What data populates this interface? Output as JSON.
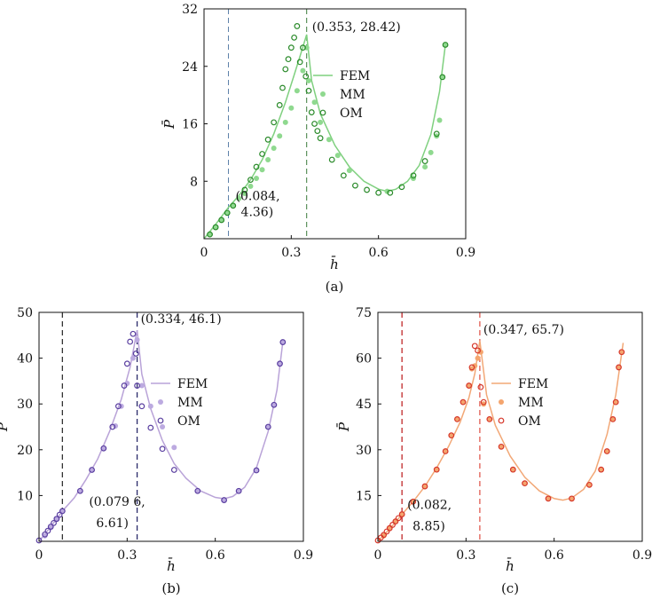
{
  "figure": {
    "panels": [
      "(a)",
      "(b)",
      "(c)"
    ]
  },
  "chart_data": [
    {
      "type": "line",
      "panel": "(a)",
      "caption": "(a)",
      "xlabel": "h̄",
      "ylabel": "P̄",
      "xlim": [
        0,
        0.9
      ],
      "ylim": [
        0,
        32
      ],
      "xticks": [
        0,
        0.3,
        0.6,
        0.9
      ],
      "xtick_labels": [
        "0",
        "0.3",
        "0.6",
        "0.9"
      ],
      "yticks": [
        8,
        16,
        24,
        32
      ],
      "ytick_labels": [
        "8",
        "16",
        "24",
        "32"
      ],
      "colors": {
        "fem": "#7fd07f",
        "mm": "#8fd98f",
        "om": "#2a8a2a",
        "vline1": "#5a7fa8",
        "vline2": "#3a7a3a"
      },
      "legend": {
        "position": "center-right",
        "entries": [
          "FEM",
          "MM",
          "OM"
        ]
      },
      "vlines": [
        0.084,
        0.353
      ],
      "annotations": [
        {
          "label": "(0.353, 28.42)",
          "x": 0.353,
          "y": 28.42
        },
        {
          "label": "(0.084,",
          "x": 0.084,
          "y": 4.36
        },
        {
          "label": "4.36)",
          "x": 0.084,
          "y": 4.36
        }
      ],
      "series": [
        {
          "name": "FEM",
          "x": [
            0,
            0.04,
            0.084,
            0.12,
            0.16,
            0.2,
            0.24,
            0.28,
            0.31,
            0.33,
            0.353,
            0.37,
            0.4,
            0.45,
            0.5,
            0.55,
            0.6,
            0.63,
            0.66,
            0.7,
            0.74,
            0.78,
            0.81,
            0.83
          ],
          "y": [
            0,
            2.0,
            4.36,
            6.0,
            8.2,
            11.0,
            14.6,
            19.0,
            22.8,
            25.4,
            28.42,
            22.0,
            17.4,
            13.0,
            10.0,
            8.0,
            6.9,
            6.6,
            6.9,
            8.0,
            10.2,
            14.5,
            20.5,
            27.0
          ]
        },
        {
          "name": "MM",
          "x": [
            0.02,
            0.04,
            0.06,
            0.08,
            0.1,
            0.12,
            0.14,
            0.16,
            0.18,
            0.2,
            0.22,
            0.24,
            0.26,
            0.28,
            0.3,
            0.32,
            0.34,
            0.353,
            0.36,
            0.38,
            0.4,
            0.43,
            0.46,
            0.5,
            0.63,
            0.72,
            0.76,
            0.78,
            0.8,
            0.81,
            0.82,
            0.83
          ],
          "y": [
            0.6,
            1.6,
            2.6,
            3.6,
            4.6,
            5.6,
            6.3,
            7.3,
            8.4,
            9.6,
            11.0,
            12.6,
            14.3,
            16.2,
            18.2,
            20.6,
            23.4,
            26.6,
            22.0,
            19.0,
            16.2,
            13.8,
            11.6,
            9.5,
            6.6,
            8.4,
            10.0,
            12.0,
            14.3,
            16.5,
            22.5,
            27.0
          ]
        },
        {
          "name": "OM",
          "x": [
            0.02,
            0.04,
            0.06,
            0.08,
            0.1,
            0.14,
            0.16,
            0.18,
            0.2,
            0.22,
            0.24,
            0.26,
            0.27,
            0.28,
            0.29,
            0.3,
            0.31,
            0.32,
            0.33,
            0.34,
            0.35,
            0.36,
            0.37,
            0.38,
            0.39,
            0.4,
            0.44,
            0.48,
            0.52,
            0.56,
            0.6,
            0.64,
            0.68,
            0.72,
            0.76,
            0.8,
            0.82,
            0.83
          ],
          "y": [
            0.6,
            1.6,
            2.6,
            3.6,
            4.6,
            6.8,
            8.2,
            10.0,
            11.8,
            13.8,
            16.2,
            18.6,
            21.0,
            23.6,
            25.0,
            26.6,
            28.0,
            29.6,
            24.6,
            26.6,
            22.6,
            20.6,
            17.6,
            16.0,
            15.0,
            14.0,
            11.0,
            8.8,
            7.4,
            6.8,
            6.4,
            6.4,
            7.2,
            8.8,
            10.8,
            14.6,
            22.5,
            27.0
          ]
        }
      ]
    },
    {
      "type": "line",
      "panel": "(b)",
      "caption": "(b)",
      "xlabel": "h̄",
      "ylabel": "P̄",
      "xlim": [
        0,
        0.9
      ],
      "ylim": [
        0,
        50
      ],
      "xticks": [
        0,
        0.3,
        0.6,
        0.9
      ],
      "xtick_labels": [
        "0",
        "0.3",
        "0.6",
        "0.9"
      ],
      "yticks": [
        10,
        20,
        30,
        40,
        50
      ],
      "ytick_labels": [
        "10",
        "20",
        "30",
        "40",
        "50"
      ],
      "colors": {
        "fem": "#b9a3d8",
        "mm": "#bcaae0",
        "om": "#5a3fa0",
        "vline1": "#333333",
        "vline2": "#2a2a6a"
      },
      "legend": {
        "position": "center-right",
        "entries": [
          "FEM",
          "MM",
          "OM"
        ]
      },
      "vlines": [
        0.0796,
        0.334
      ],
      "annotations": [
        {
          "label": "(0.334, 46.1)",
          "x": 0.334,
          "y": 46.1
        },
        {
          "label": "(0.079 6,",
          "x": 0.0796,
          "y": 6.61
        },
        {
          "label": "6.61)",
          "x": 0.0796,
          "y": 6.61
        }
      ],
      "series": [
        {
          "name": "FEM",
          "x": [
            0,
            0.04,
            0.0796,
            0.12,
            0.16,
            0.2,
            0.24,
            0.28,
            0.31,
            0.334,
            0.35,
            0.38,
            0.42,
            0.46,
            0.5,
            0.55,
            0.6,
            0.63,
            0.66,
            0.7,
            0.74,
            0.78,
            0.81,
            0.83
          ],
          "y": [
            0,
            3.2,
            6.61,
            9.5,
            13.5,
            18.0,
            24.0,
            31.0,
            38.0,
            46.1,
            36.5,
            29.0,
            22.0,
            17.0,
            13.8,
            11.0,
            9.6,
            9.3,
            9.8,
            11.8,
            16.0,
            24.0,
            33.0,
            43.5
          ]
        },
        {
          "name": "MM",
          "x": [
            0.02,
            0.04,
            0.06,
            0.0796,
            0.14,
            0.18,
            0.22,
            0.26,
            0.28,
            0.3,
            0.32,
            0.334,
            0.35,
            0.38,
            0.42,
            0.46,
            0.54,
            0.63,
            0.68,
            0.74,
            0.78,
            0.8,
            0.82,
            0.83
          ],
          "y": [
            1.2,
            3.0,
            4.8,
            6.61,
            11.0,
            15.6,
            20.3,
            25.2,
            29.5,
            34.5,
            40.0,
            44.0,
            34.0,
            29.5,
            25.0,
            20.5,
            11.0,
            9.0,
            11.0,
            15.5,
            25.0,
            29.8,
            38.8,
            43.5
          ]
        },
        {
          "name": "OM",
          "x": [
            0,
            0.02,
            0.03,
            0.04,
            0.05,
            0.06,
            0.07,
            0.0796,
            0.14,
            0.18,
            0.22,
            0.25,
            0.27,
            0.29,
            0.3,
            0.31,
            0.32,
            0.33,
            0.334,
            0.35,
            0.38,
            0.42,
            0.46,
            0.54,
            0.63,
            0.68,
            0.74,
            0.78,
            0.8,
            0.82,
            0.83
          ],
          "y": [
            0.2,
            1.5,
            2.3,
            3.2,
            4.0,
            4.9,
            5.8,
            6.61,
            11.0,
            15.6,
            20.3,
            25.0,
            29.5,
            34.0,
            38.8,
            43.6,
            45.3,
            41.0,
            34.0,
            29.5,
            24.8,
            20.2,
            15.6,
            11.0,
            9.0,
            11.0,
            15.5,
            25.0,
            29.8,
            38.8,
            43.5
          ]
        }
      ]
    },
    {
      "type": "line",
      "panel": "(c)",
      "caption": "(c)",
      "xlabel": "h̄",
      "ylabel": "P̄",
      "xlim": [
        0,
        0.9
      ],
      "ylim": [
        0,
        75
      ],
      "xticks": [
        0,
        0.3,
        0.6,
        0.9
      ],
      "xtick_labels": [
        "0",
        "0.3",
        "0.6",
        "0.9"
      ],
      "yticks": [
        15,
        30,
        45,
        60,
        75
      ],
      "ytick_labels": [
        "15",
        "30",
        "45",
        "60",
        "75"
      ],
      "colors": {
        "fem": "#f2a877",
        "mm": "#f4a56e",
        "om": "#d6372a",
        "vline1": "#c0282a",
        "vline2": "#e05a50"
      },
      "legend": {
        "position": "center-right",
        "entries": [
          "FEM",
          "MM",
          "OM"
        ]
      },
      "vlines": [
        0.082,
        0.347
      ],
      "annotations": [
        {
          "label": "(0.347, 65.7)",
          "x": 0.347,
          "y": 65.7
        },
        {
          "label": "(0.082,",
          "x": 0.082,
          "y": 8.85
        },
        {
          "label": "8.85)",
          "x": 0.082,
          "y": 8.85
        }
      ],
      "series": [
        {
          "name": "FEM",
          "x": [
            0,
            0.04,
            0.082,
            0.12,
            0.16,
            0.2,
            0.24,
            0.28,
            0.31,
            0.33,
            0.347,
            0.37,
            0.4,
            0.45,
            0.5,
            0.55,
            0.6,
            0.63,
            0.66,
            0.7,
            0.74,
            0.78,
            0.81,
            0.835
          ],
          "y": [
            0,
            4.0,
            8.85,
            13.0,
            18.0,
            24.0,
            31.0,
            39.0,
            47.0,
            55.0,
            65.7,
            48.0,
            38.0,
            28.0,
            21.0,
            16.5,
            14.0,
            13.5,
            14.2,
            17.0,
            23.0,
            35.0,
            48.0,
            65.0
          ]
        },
        {
          "name": "MM",
          "x": [
            0.02,
            0.04,
            0.06,
            0.082,
            0.12,
            0.16,
            0.2,
            0.23,
            0.25,
            0.27,
            0.29,
            0.31,
            0.32,
            0.33,
            0.34,
            0.35,
            0.36,
            0.38,
            0.42,
            0.46,
            0.5,
            0.58,
            0.66,
            0.72,
            0.76,
            0.78,
            0.8,
            0.81,
            0.82,
            0.83
          ],
          "y": [
            1.8,
            4.4,
            6.6,
            8.85,
            13.0,
            18.0,
            23.5,
            29.5,
            34.7,
            40.0,
            45.6,
            51.0,
            56.5,
            57.5,
            60.0,
            62.0,
            45.0,
            40.0,
            31.0,
            23.5,
            19.0,
            14.0,
            14.0,
            18.5,
            23.5,
            29.5,
            40.0,
            45.6,
            57.0,
            62.0
          ]
        },
        {
          "name": "OM",
          "x": [
            0,
            0.01,
            0.02,
            0.03,
            0.04,
            0.05,
            0.06,
            0.07,
            0.082,
            0.12,
            0.16,
            0.2,
            0.23,
            0.25,
            0.27,
            0.29,
            0.31,
            0.32,
            0.33,
            0.34,
            0.35,
            0.36,
            0.38,
            0.42,
            0.46,
            0.5,
            0.58,
            0.66,
            0.72,
            0.76,
            0.78,
            0.8,
            0.81,
            0.82,
            0.83
          ],
          "y": [
            0.3,
            1.2,
            2.1,
            3.2,
            4.3,
            5.4,
            6.5,
            7.6,
            8.85,
            13.0,
            18.0,
            23.5,
            29.5,
            34.7,
            40.0,
            45.6,
            51.0,
            57.0,
            64.0,
            62.5,
            50.5,
            45.6,
            40.0,
            31.0,
            23.5,
            19.0,
            14.0,
            14.0,
            18.5,
            23.5,
            29.5,
            40.0,
            45.6,
            57.0,
            62.0
          ]
        }
      ]
    }
  ]
}
